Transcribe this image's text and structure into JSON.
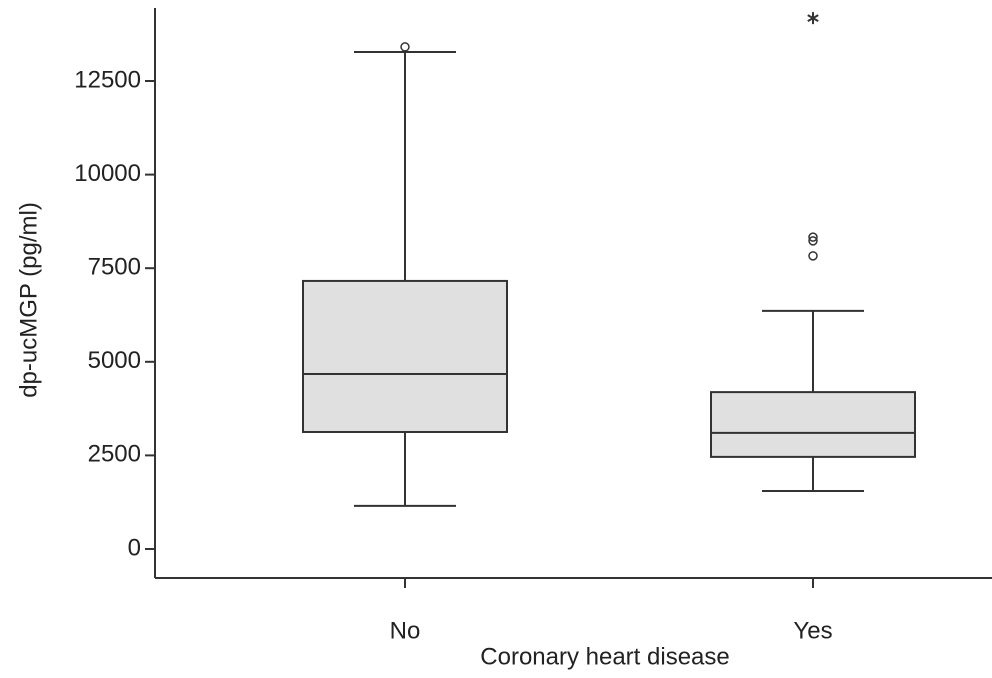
{
  "chart_data": {
    "type": "box",
    "y_label": "dp-ucMGP (pg/ml)",
    "x_label": "Coronary heart disease",
    "categories": [
      "No",
      "Yes"
    ],
    "color": "#e0e0e0",
    "boxes": [
      {
        "min": 1150,
        "q1": 3125,
        "median": 4675,
        "q3": 7160,
        "max": 13275,
        "outliers": [
          13410
        ],
        "extremes": []
      },
      {
        "min": 1550,
        "q1": 2460,
        "median": 3100,
        "q3": 4190,
        "max": 6360,
        "outliers": [
          8330,
          8230,
          7830
        ],
        "extremes": [
          14180
        ]
      }
    ],
    "ylim": [
      -775,
      14450
    ],
    "yticks": [
      0,
      2500,
      5000,
      7500,
      10000,
      12500
    ]
  }
}
